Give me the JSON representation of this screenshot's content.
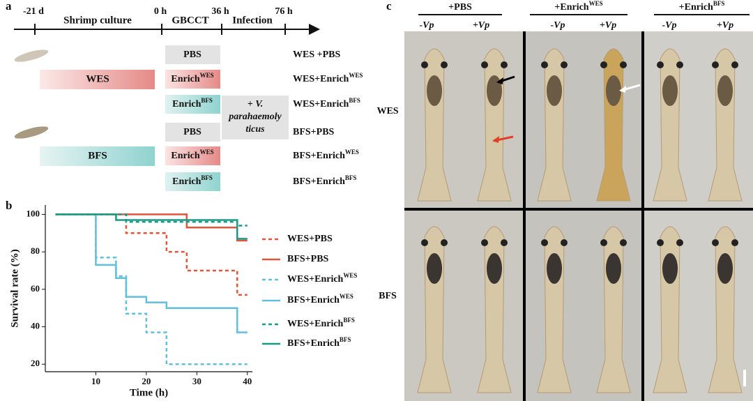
{
  "panel_a": {
    "label": "a",
    "timeline": [
      "-21 d",
      "0 h",
      "36 h",
      "76 h"
    ],
    "phases": [
      "Shrimp culture",
      "GBCCT",
      "Infection"
    ],
    "diets": [
      "WES",
      "BFS"
    ],
    "treatments": [
      {
        "text": "PBS"
      },
      {
        "text": "Enrich",
        "sup": "WES"
      },
      {
        "text": "Enrich",
        "sup": "BFS"
      },
      {
        "text": "PBS"
      },
      {
        "text": "Enrich",
        "sup": "WES"
      },
      {
        "text": "Enrich",
        "sup": "BFS"
      }
    ],
    "infection": [
      "+ V.",
      "parahaemoly",
      "ticus"
    ],
    "groups": [
      {
        "text": "WES +PBS"
      },
      {
        "text": "WES+Enrich",
        "sup": "WES"
      },
      {
        "text": "WES+Enrich",
        "sup": "BFS"
      },
      {
        "text": "BFS+PBS"
      },
      {
        "text": "BFS+Enrich",
        "sup": "WES"
      },
      {
        "text": "BFS+Enrich",
        "sup": "BFS"
      }
    ]
  },
  "chart_data": {
    "type": "step",
    "panel_label": "b",
    "x_label": "Time (h)",
    "y_label": "Survival rate (%)",
    "xlim": [
      0,
      41
    ],
    "ylim": [
      16,
      105
    ],
    "xticks": [
      10,
      20,
      30,
      40
    ],
    "yticks": [
      20,
      40,
      60,
      80,
      100
    ],
    "series": [
      {
        "name": "WES+PBS",
        "color": "#e0553b",
        "dashed": true,
        "x": [
          2,
          16,
          24,
          28,
          38,
          40
        ],
        "values": [
          100,
          90,
          80,
          70,
          57,
          57
        ]
      },
      {
        "name": "BFS+PBS",
        "color": "#e0553b",
        "dashed": false,
        "x": [
          2,
          28,
          38,
          40
        ],
        "values": [
          100,
          93,
          86,
          86
        ]
      },
      {
        "name": "WES+Enrich",
        "name_sup": "WES",
        "color": "#62bfdc",
        "dashed": true,
        "x": [
          2,
          10,
          14,
          16,
          20,
          24,
          40
        ],
        "values": [
          100,
          77,
          67,
          47,
          37,
          20,
          20
        ]
      },
      {
        "name": "BFS+Enrich",
        "name_sup": "WES",
        "color": "#62bfdc",
        "dashed": false,
        "x": [
          2,
          10,
          14,
          16,
          20,
          24,
          38,
          40
        ],
        "values": [
          100,
          73,
          66,
          56,
          53,
          50,
          37,
          37
        ]
      },
      {
        "name": "WES+Enrich",
        "name_sup": "BFS",
        "color": "#1a9a86",
        "dashed": true,
        "x": [
          2,
          16,
          38,
          40
        ],
        "values": [
          100,
          96,
          94,
          94
        ]
      },
      {
        "name": "BFS+Enrich",
        "name_sup": "BFS",
        "color": "#1a9a86",
        "dashed": false,
        "x": [
          2,
          14,
          38,
          40
        ],
        "values": [
          100,
          97,
          87,
          87
        ]
      }
    ]
  },
  "panel_c": {
    "label": "c",
    "columns": [
      {
        "text": "+PBS"
      },
      {
        "text": "+Enrich",
        "sup": "WES"
      },
      {
        "text": "+Enrich",
        "sup": "BFS"
      }
    ],
    "conditions": [
      "-Vp",
      "+Vp",
      "-Vp",
      "+Vp",
      "-Vp",
      "+Vp"
    ],
    "rows": [
      "WES",
      "BFS"
    ]
  }
}
